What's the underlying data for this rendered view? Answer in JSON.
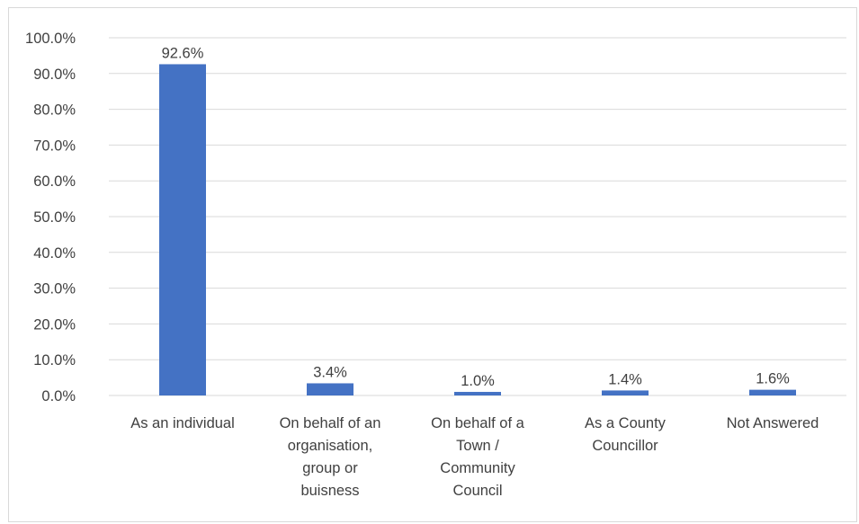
{
  "chart_data": {
    "type": "bar",
    "categories": [
      [
        "As an individual"
      ],
      [
        "On behalf of an",
        "organisation,",
        "group or",
        "buisness"
      ],
      [
        "On behalf of a",
        "Town /",
        "Community",
        "Council"
      ],
      [
        "As a County",
        "Councillor"
      ],
      [
        "Not Answered"
      ]
    ],
    "values": [
      92.6,
      3.4,
      1.0,
      1.4,
      1.6
    ],
    "data_labels": [
      "92.6%",
      "3.4%",
      "1.0%",
      "1.4%",
      "1.6%"
    ],
    "ylim": [
      0,
      100
    ],
    "yticks": [
      0,
      10,
      20,
      30,
      40,
      50,
      60,
      70,
      80,
      90,
      100
    ],
    "ytick_labels": [
      "0.0%",
      "10.0%",
      "20.0%",
      "30.0%",
      "40.0%",
      "50.0%",
      "60.0%",
      "70.0%",
      "80.0%",
      "90.0%",
      "100.0%"
    ],
    "grid": true,
    "colors": {
      "bar": "#4472c4",
      "grid": "#d9d9d9",
      "text": "#404040"
    }
  }
}
